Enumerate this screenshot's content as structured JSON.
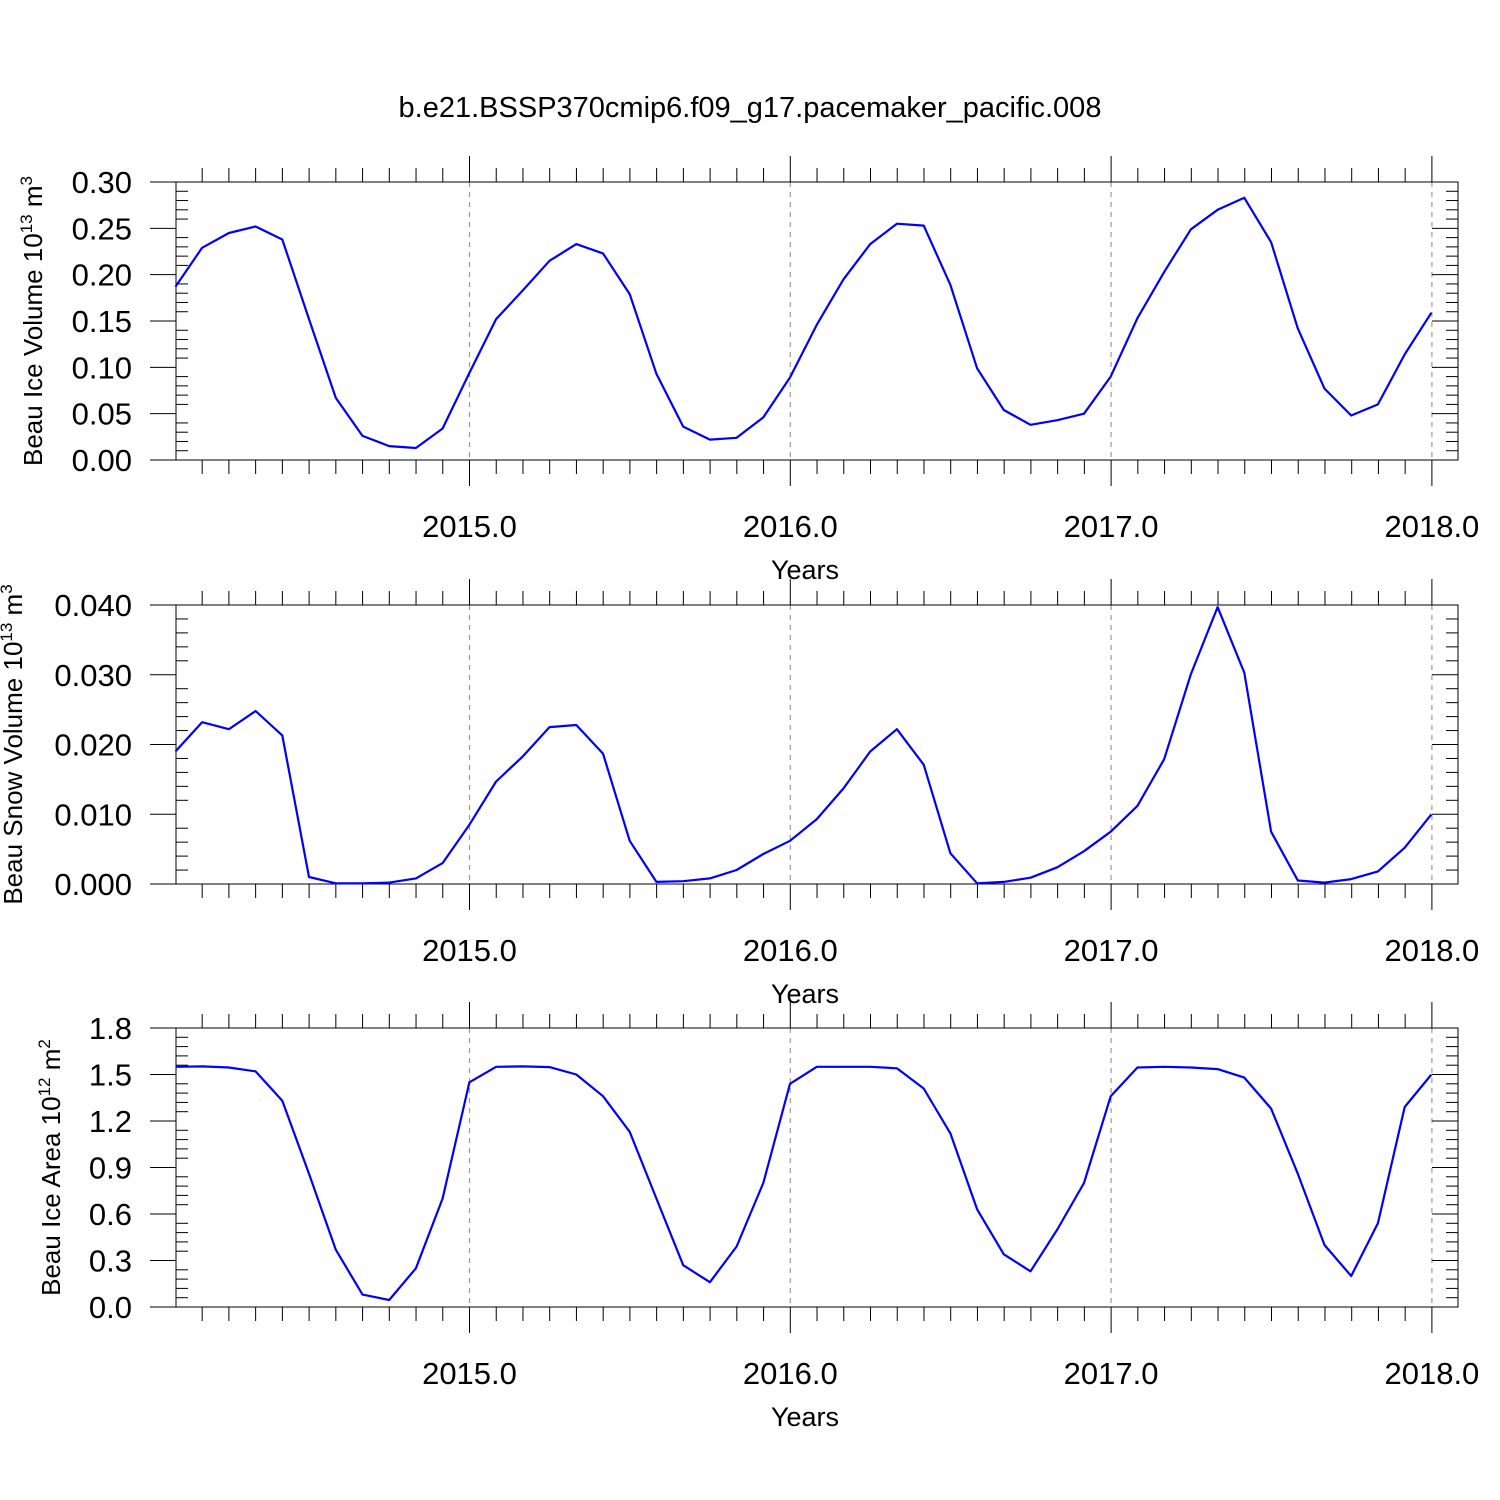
{
  "title": "b.e21.BSSP370cmip6.f09_g17.pacemaker_pacific.008",
  "colors": {
    "line": "#0000ff",
    "axis": "#000000",
    "grid": "#999999"
  },
  "chart_data": [
    {
      "type": "line",
      "ylabel": {
        "main": "Beau Ice Volume 10",
        "sup": "13",
        "unit": " m",
        "unit_sup": "3"
      },
      "xlabel": "Years",
      "xlim": [
        2014.0833,
        2018.0833
      ],
      "ylim": [
        0,
        0.3
      ],
      "yticks": [
        0.0,
        0.05,
        0.1,
        0.15,
        0.2,
        0.25,
        0.3
      ],
      "ytick_labels": [
        "0.00",
        "0.05",
        "0.10",
        "0.15",
        "0.20",
        "0.25",
        "0.30"
      ],
      "xticks": [
        2015,
        2016,
        2017,
        2018
      ],
      "xtick_labels": [
        "2015.0",
        "2016.0",
        "2017.0",
        "2018.0"
      ],
      "grid": "vertical dashed at major x ticks",
      "series": [
        {
          "x_start": 2014.0833,
          "x_step": 0.0833,
          "values": [
            0.187,
            0.229,
            0.245,
            0.252,
            0.238,
            0.152,
            0.067,
            0.026,
            0.015,
            0.013,
            0.034,
            0.094,
            0.152,
            0.183,
            0.215,
            0.233,
            0.223,
            0.179,
            0.093,
            0.036,
            0.022,
            0.024,
            0.046,
            0.089,
            0.146,
            0.195,
            0.233,
            0.255,
            0.253,
            0.189,
            0.099,
            0.054,
            0.038,
            0.043,
            0.05,
            0.09,
            0.153,
            0.203,
            0.249,
            0.27,
            0.283,
            0.235,
            0.142,
            0.077,
            0.048,
            0.06,
            0.114,
            0.159
          ]
        }
      ]
    },
    {
      "type": "line",
      "ylabel": {
        "main": "Beau Snow Volume 10",
        "sup": "13",
        "unit": " m",
        "unit_sup": "3"
      },
      "xlabel": "Years",
      "xlim": [
        2014.0833,
        2018.0833
      ],
      "ylim": [
        0,
        0.04
      ],
      "yticks": [
        0.0,
        0.01,
        0.02,
        0.03,
        0.04
      ],
      "ytick_labels": [
        "0.000",
        "0.010",
        "0.020",
        "0.030",
        "0.040"
      ],
      "xticks": [
        2015,
        2016,
        2017,
        2018
      ],
      "xtick_labels": [
        "2015.0",
        "2016.0",
        "2017.0",
        "2018.0"
      ],
      "grid": "vertical dashed at major x ticks",
      "series": [
        {
          "x_start": 2014.0833,
          "x_step": 0.0833,
          "values": [
            0.019,
            0.0232,
            0.0222,
            0.0248,
            0.0213,
            0.001,
            0.0001,
            0.0001,
            0.0002,
            0.0008,
            0.003,
            0.0085,
            0.0147,
            0.0183,
            0.0225,
            0.0228,
            0.0187,
            0.0062,
            0.0003,
            0.0004,
            0.0008,
            0.002,
            0.0043,
            0.0062,
            0.0093,
            0.0137,
            0.019,
            0.0222,
            0.0171,
            0.0044,
            0.0001,
            0.0003,
            0.0009,
            0.0024,
            0.0047,
            0.0075,
            0.0112,
            0.0179,
            0.0301,
            0.0397,
            0.0303,
            0.0075,
            0.0005,
            0.0002,
            0.0007,
            0.0018,
            0.0052,
            0.01
          ]
        }
      ]
    },
    {
      "type": "line",
      "ylabel": {
        "main": "Beau Ice Area 10",
        "sup": "12",
        "unit": " m",
        "unit_sup": "2"
      },
      "xlabel": "Years",
      "xlim": [
        2014.0833,
        2018.0833
      ],
      "ylim": [
        0,
        1.8
      ],
      "yticks": [
        0.0,
        0.3,
        0.6,
        0.9,
        1.2,
        1.5,
        1.8
      ],
      "ytick_labels": [
        "0.0",
        "0.3",
        "0.6",
        "0.9",
        "1.2",
        "1.5",
        "1.8"
      ],
      "xticks": [
        2015,
        2016,
        2017,
        2018
      ],
      "xtick_labels": [
        "2015.0",
        "2016.0",
        "2017.0",
        "2018.0"
      ],
      "grid": "vertical dashed at major x ticks",
      "series": [
        {
          "x_start": 2014.0833,
          "x_step": 0.0833,
          "values": [
            1.55,
            1.552,
            1.545,
            1.52,
            1.33,
            0.86,
            0.37,
            0.08,
            0.045,
            0.25,
            0.7,
            1.45,
            1.55,
            1.552,
            1.548,
            1.5,
            1.36,
            1.13,
            0.7,
            0.27,
            0.16,
            0.39,
            0.8,
            1.44,
            1.55,
            1.55,
            1.55,
            1.54,
            1.41,
            1.12,
            0.63,
            0.34,
            0.23,
            0.5,
            0.8,
            1.36,
            1.545,
            1.55,
            1.545,
            1.535,
            1.48,
            1.28,
            0.86,
            0.4,
            0.2,
            0.54,
            1.29,
            1.5
          ]
        }
      ]
    }
  ]
}
